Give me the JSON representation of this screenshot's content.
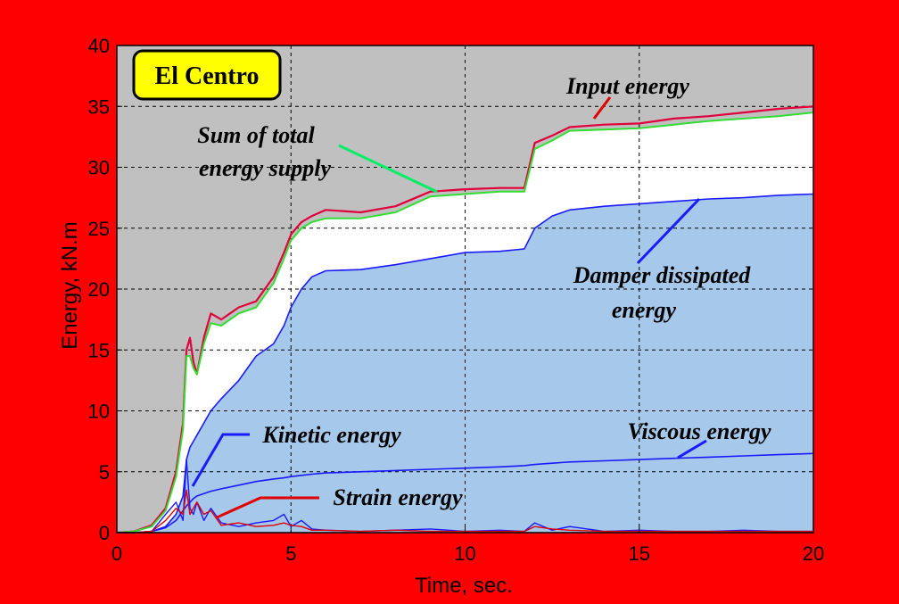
{
  "chart_data": {
    "type": "area",
    "title": "El Centro",
    "xlabel": "Time, sec.",
    "ylabel": "Energy, kN.m",
    "xlim": [
      0,
      20
    ],
    "ylim": [
      0,
      40
    ],
    "xticks": [
      "0",
      "5",
      "10",
      "15",
      "20"
    ],
    "yticks": [
      "0",
      "5",
      "10",
      "15",
      "20",
      "25",
      "30",
      "35",
      "40"
    ],
    "grid": true,
    "colors": {
      "figure_background": "#ff0000",
      "plot_background": "#c0c0c0",
      "total_supply_fill": "#ffffff",
      "damper_fill": "#a6c8ea",
      "input_line": "#e0003c",
      "total_line": "#33dd33",
      "damper_line": "#1a1aff",
      "viscous_line": "#1a1aff",
      "kinetic_line": "#1a1aff",
      "strain_line": "#e00000",
      "title_box": "#ffff00"
    },
    "x": [
      0,
      0.5,
      1.0,
      1.4,
      1.7,
      1.9,
      2.0,
      2.1,
      2.2,
      2.3,
      2.5,
      2.7,
      3.0,
      3.5,
      4.0,
      4.5,
      4.8,
      5.0,
      5.3,
      5.6,
      6.0,
      7.0,
      8.0,
      9.0,
      10.0,
      11.0,
      11.7,
      12.0,
      12.5,
      13.0,
      14.0,
      15.0,
      16.0,
      17.0,
      18.0,
      19.0,
      20.0
    ],
    "series": [
      {
        "name": "Input energy",
        "values": [
          0,
          0.1,
          0.6,
          2.0,
          5.0,
          9.0,
          15.0,
          16.0,
          14.0,
          13.0,
          16.0,
          18.0,
          17.5,
          18.5,
          19.0,
          21.0,
          23.0,
          24.5,
          25.5,
          26.0,
          26.5,
          26.3,
          26.8,
          28.0,
          28.2,
          28.3,
          28.3,
          32.0,
          32.6,
          33.3,
          33.5,
          33.6,
          34.0,
          34.2,
          34.5,
          34.8,
          35.0
        ]
      },
      {
        "name": "Sum of total energy supply",
        "values": [
          0,
          0.1,
          0.5,
          1.8,
          4.6,
          8.5,
          14.5,
          14.5,
          13.5,
          13.0,
          15.5,
          17.2,
          17.0,
          18.0,
          18.5,
          20.5,
          22.5,
          24.0,
          25.0,
          25.5,
          25.8,
          25.8,
          26.3,
          27.6,
          27.8,
          28.0,
          28.0,
          31.5,
          32.2,
          33.0,
          33.1,
          33.2,
          33.5,
          33.8,
          34.0,
          34.2,
          34.5
        ]
      },
      {
        "name": "Damper dissipated energy",
        "values": [
          0,
          0,
          0.1,
          0.5,
          1.5,
          3.0,
          6.0,
          7.0,
          7.5,
          8.0,
          9.0,
          10.0,
          11.0,
          12.5,
          14.5,
          15.5,
          17.0,
          18.5,
          20.0,
          21.0,
          21.5,
          21.6,
          22.0,
          22.5,
          23.0,
          23.1,
          23.3,
          25.0,
          26.0,
          26.5,
          26.8,
          27.0,
          27.2,
          27.4,
          27.5,
          27.7,
          27.8
        ]
      },
      {
        "name": "Viscous energy",
        "values": [
          0,
          0,
          0.1,
          0.4,
          1.0,
          1.8,
          2.2,
          2.5,
          2.8,
          3.0,
          3.2,
          3.4,
          3.6,
          3.9,
          4.2,
          4.4,
          4.5,
          4.6,
          4.7,
          4.8,
          4.9,
          5.0,
          5.1,
          5.2,
          5.3,
          5.4,
          5.5,
          5.6,
          5.7,
          5.8,
          5.9,
          6.0,
          6.1,
          6.2,
          6.3,
          6.4,
          6.5
        ]
      },
      {
        "name": "Kinetic energy",
        "values": [
          0,
          0,
          0.1,
          1.5,
          2.5,
          1.0,
          6.0,
          2.0,
          1.5,
          2.5,
          1.0,
          2.0,
          0.8,
          0.5,
          0.8,
          1.0,
          1.5,
          0.5,
          1.0,
          0.3,
          0.2,
          0.1,
          0.2,
          0.3,
          0.1,
          0.2,
          0.1,
          0.8,
          0.2,
          0.5,
          0.1,
          0.2,
          0.1,
          0.1,
          0.2,
          0.1,
          0.1
        ]
      },
      {
        "name": "Strain energy",
        "values": [
          0,
          0,
          0.1,
          1.0,
          2.0,
          1.5,
          3.5,
          1.5,
          2.0,
          2.5,
          1.5,
          1.8,
          0.6,
          0.8,
          0.5,
          0.6,
          0.8,
          0.6,
          0.5,
          0.2,
          0.2,
          0.1,
          0.2,
          0.1,
          0.1,
          0.1,
          0.1,
          0.5,
          0.3,
          0.2,
          0.1,
          0.1,
          0.1,
          0.1,
          0.1,
          0.1,
          0.1
        ]
      }
    ],
    "annotations": [
      {
        "text": "Input energy",
        "series": "Input energy"
      },
      {
        "text": "Sum of total",
        "series": "Sum of total energy supply"
      },
      {
        "text": "energy supply",
        "series": "Sum of total energy supply"
      },
      {
        "text": "Damper dissipated",
        "series": "Damper dissipated energy"
      },
      {
        "text": "energy",
        "series": "Damper dissipated energy"
      },
      {
        "text": "Viscous energy",
        "series": "Viscous energy"
      },
      {
        "text": "Kinetic energy",
        "series": "Kinetic energy"
      },
      {
        "text": "Strain energy",
        "series": "Strain energy"
      }
    ]
  }
}
